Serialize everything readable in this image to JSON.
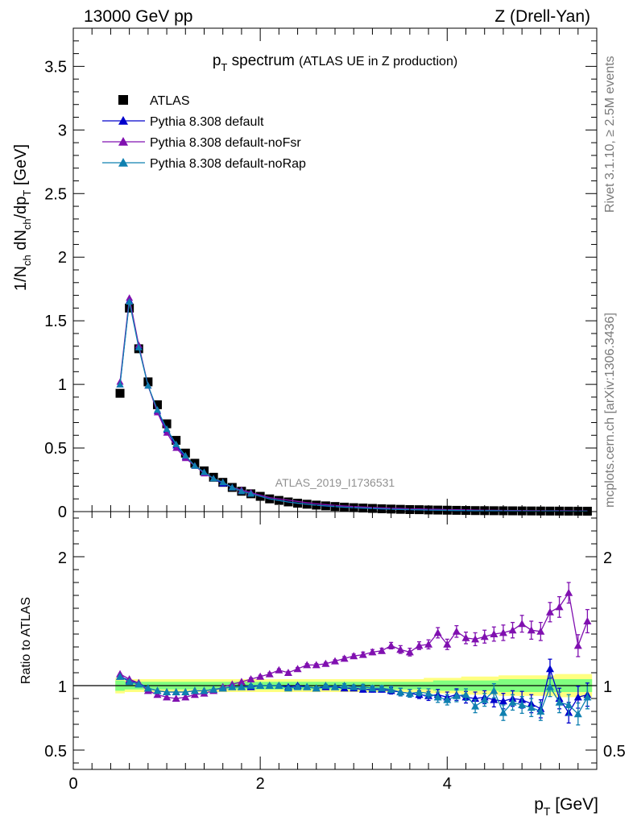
{
  "header": {
    "energy": "13000 GeV pp",
    "process": "Z (Drell-Yan)"
  },
  "side": {
    "rivet": "Rivet 3.1.10, ≥ 2.5M events",
    "mcplots": "mcplots.cern.ch [arXiv:1306.3436]"
  },
  "analysis_id": "ATLAS_2019_I1736531",
  "colors": {
    "data": "#000000",
    "default": "#0000cc",
    "noFsr": "#8010b0",
    "noRap": "#0f80b0",
    "band_outer": "#ffff80",
    "band_inner": "#80ff80"
  },
  "chart_data": [
    {
      "type": "line",
      "title": "p_T spectrum",
      "title_note": "(ATLAS UE in Z production)",
      "ylabel": "1/N_ch dN_ch/dp_T [GeV]",
      "xlabel": "p_T [GeV]",
      "xlim": [
        0,
        5.6
      ],
      "ylim": [
        0,
        3.8
      ],
      "y_ticks": [
        0,
        0.5,
        1,
        1.5,
        2,
        2.5,
        3,
        3.5
      ],
      "y_tick_labels": [
        "0",
        "0.5",
        "1",
        "1.5",
        "2",
        "2.5",
        "3",
        "3.5"
      ],
      "legend_position": "top-left",
      "x": [
        0.5,
        0.6,
        0.7,
        0.8,
        0.9,
        1.0,
        1.1,
        1.2,
        1.3,
        1.4,
        1.5,
        1.6,
        1.7,
        1.8,
        1.9,
        2.0,
        2.1,
        2.2,
        2.3,
        2.4,
        2.5,
        2.6,
        2.7,
        2.8,
        2.9,
        3.0,
        3.1,
        3.2,
        3.3,
        3.4,
        3.5,
        3.6,
        3.7,
        3.8,
        3.9,
        4.0,
        4.1,
        4.2,
        4.3,
        4.4,
        4.5,
        4.6,
        4.7,
        4.8,
        4.9,
        5.0,
        5.1,
        5.2,
        5.3,
        5.4,
        5.5
      ],
      "series": [
        {
          "name": "ATLAS",
          "marker": "square",
          "color": "#000000",
          "values": [
            0.93,
            1.6,
            1.28,
            1.02,
            0.84,
            0.69,
            0.56,
            0.46,
            0.38,
            0.32,
            0.27,
            0.23,
            0.19,
            0.16,
            0.14,
            0.12,
            0.1,
            0.088,
            0.076,
            0.066,
            0.058,
            0.051,
            0.045,
            0.04,
            0.035,
            0.031,
            0.028,
            0.025,
            0.022,
            0.02,
            0.018,
            0.016,
            0.015,
            0.013,
            0.012,
            0.011,
            0.01,
            0.009,
            0.008,
            0.0075,
            0.007,
            0.0065,
            0.006,
            0.0055,
            0.005,
            0.0046,
            0.0042,
            0.004,
            0.0037,
            0.0034,
            0.0032
          ]
        },
        {
          "name": "Pythia 8.308 default",
          "marker": "triangle",
          "color": "#0000cc",
          "values": [
            1.0,
            1.66,
            1.3,
            0.99,
            0.79,
            0.64,
            0.52,
            0.43,
            0.36,
            0.31,
            0.26,
            0.22,
            0.19,
            0.16,
            0.14,
            0.12,
            0.1,
            0.088,
            0.076,
            0.066,
            0.058,
            0.05,
            0.044,
            0.039,
            0.034,
            0.03,
            0.027,
            0.024,
            0.021,
            0.019,
            0.017,
            0.015,
            0.014,
            0.012,
            0.011,
            0.01,
            0.009,
            0.0082,
            0.0072,
            0.0068,
            0.0062,
            0.0057,
            0.0054,
            0.0049,
            0.0043,
            0.0052,
            0.0038,
            0.0036,
            0.0029,
            0.0031,
            0.003
          ]
        },
        {
          "name": "Pythia 8.308 default-noFsr",
          "marker": "triangle",
          "color": "#8010b0",
          "values": [
            1.02,
            1.68,
            1.31,
            0.99,
            0.78,
            0.62,
            0.5,
            0.42,
            0.36,
            0.3,
            0.26,
            0.23,
            0.19,
            0.17,
            0.15,
            0.13,
            0.11,
            0.1,
            0.09,
            0.08,
            0.07,
            0.062,
            0.055,
            0.049,
            0.044,
            0.04,
            0.036,
            0.033,
            0.03,
            0.027,
            0.025,
            0.022,
            0.021,
            0.019,
            0.018,
            0.016,
            0.015,
            0.014,
            0.012,
            0.011,
            0.01,
            0.0095,
            0.0085,
            0.0085,
            0.0072,
            0.0067,
            0.0064,
            0.0066,
            0.0064,
            0.0044,
            0.0048
          ]
        },
        {
          "name": "Pythia 8.308 default-noRap",
          "marker": "triangle",
          "color": "#0f80b0",
          "values": [
            1.0,
            1.65,
            1.29,
            0.99,
            0.8,
            0.65,
            0.53,
            0.44,
            0.36,
            0.31,
            0.26,
            0.23,
            0.19,
            0.16,
            0.14,
            0.12,
            0.1,
            0.088,
            0.075,
            0.066,
            0.058,
            0.05,
            0.045,
            0.04,
            0.035,
            0.031,
            0.028,
            0.025,
            0.022,
            0.019,
            0.017,
            0.016,
            0.014,
            0.012,
            0.011,
            0.0098,
            0.0092,
            0.0086,
            0.0069,
            0.0068,
            0.0068,
            0.0052,
            0.0053,
            0.0047,
            0.0041,
            0.0036,
            0.0042,
            0.0035,
            0.0032,
            0.0027,
            0.0029
          ]
        }
      ]
    },
    {
      "type": "line",
      "ylabel": "Ratio to ATLAS",
      "xlabel": "p_T [GeV]",
      "xlim": [
        0,
        5.6
      ],
      "ylim": [
        0.35,
        2.35
      ],
      "y_ticks": [
        0.5,
        1,
        2
      ],
      "y_tick_labels": [
        "0.5",
        "1",
        "2"
      ],
      "x_ticks": [
        0,
        2,
        4
      ],
      "x_tick_labels": [
        "0",
        "2",
        "4"
      ],
      "x": [
        0.5,
        0.6,
        0.7,
        0.8,
        0.9,
        1.0,
        1.1,
        1.2,
        1.3,
        1.4,
        1.5,
        1.6,
        1.7,
        1.8,
        1.9,
        2.0,
        2.1,
        2.2,
        2.3,
        2.4,
        2.5,
        2.6,
        2.7,
        2.8,
        2.9,
        3.0,
        3.1,
        3.2,
        3.3,
        3.4,
        3.5,
        3.6,
        3.7,
        3.8,
        3.9,
        4.0,
        4.1,
        4.2,
        4.3,
        4.4,
        4.5,
        4.6,
        4.7,
        4.8,
        4.9,
        5.0,
        5.1,
        5.2,
        5.3,
        5.4,
        5.5
      ],
      "band_inner_halfwidth": [
        0.04,
        0.03,
        0.03,
        0.03,
        0.03,
        0.03,
        0.03,
        0.03,
        0.03,
        0.03,
        0.03,
        0.03,
        0.03,
        0.03,
        0.03,
        0.03,
        0.03,
        0.03,
        0.03,
        0.03,
        0.03,
        0.03,
        0.03,
        0.03,
        0.03,
        0.03,
        0.03,
        0.03,
        0.03,
        0.03,
        0.03,
        0.03,
        0.03,
        0.03,
        0.04,
        0.04,
        0.04,
        0.04,
        0.04,
        0.04,
        0.04,
        0.05,
        0.05,
        0.05,
        0.05,
        0.05,
        0.05,
        0.05,
        0.05,
        0.05,
        0.05
      ],
      "band_outer_halfwidth": [
        0.06,
        0.05,
        0.05,
        0.05,
        0.05,
        0.05,
        0.05,
        0.05,
        0.05,
        0.05,
        0.05,
        0.05,
        0.05,
        0.05,
        0.05,
        0.05,
        0.05,
        0.05,
        0.05,
        0.05,
        0.05,
        0.05,
        0.05,
        0.05,
        0.05,
        0.05,
        0.05,
        0.05,
        0.05,
        0.05,
        0.05,
        0.05,
        0.05,
        0.06,
        0.06,
        0.06,
        0.06,
        0.07,
        0.07,
        0.07,
        0.07,
        0.08,
        0.08,
        0.08,
        0.08,
        0.08,
        0.08,
        0.09,
        0.09,
        0.09,
        0.09
      ],
      "series": [
        {
          "name": "Pythia 8.308 default",
          "marker": "triangle",
          "color": "#0000cc",
          "values": [
            1.07,
            1.04,
            1.02,
            0.98,
            0.96,
            0.95,
            0.95,
            0.95,
            0.96,
            0.96,
            0.97,
            0.98,
            0.99,
            0.99,
            0.99,
            1.0,
            1.0,
            1.0,
            0.99,
            1.0,
            0.99,
            0.98,
            0.99,
            0.99,
            0.98,
            0.98,
            0.97,
            0.97,
            0.97,
            0.96,
            0.95,
            0.94,
            0.93,
            0.92,
            0.93,
            0.91,
            0.93,
            0.91,
            0.9,
            0.91,
            0.89,
            0.88,
            0.9,
            0.89,
            0.86,
            0.82,
            1.13,
            0.9,
            0.79,
            0.91,
            0.93
          ],
          "errors": [
            0.005,
            0.005,
            0.005,
            0.005,
            0.005,
            0.005,
            0.005,
            0.005,
            0.005,
            0.005,
            0.005,
            0.005,
            0.005,
            0.005,
            0.01,
            0.01,
            0.01,
            0.01,
            0.01,
            0.01,
            0.01,
            0.01,
            0.01,
            0.01,
            0.015,
            0.015,
            0.02,
            0.02,
            0.02,
            0.025,
            0.03,
            0.03,
            0.03,
            0.035,
            0.04,
            0.04,
            0.045,
            0.045,
            0.05,
            0.05,
            0.055,
            0.06,
            0.06,
            0.065,
            0.07,
            0.07,
            0.075,
            0.08,
            0.08,
            0.085,
            0.09
          ]
        },
        {
          "name": "Pythia 8.308 default-noFsr",
          "marker": "triangle",
          "color": "#8010b0",
          "values": [
            1.09,
            1.05,
            1.02,
            0.96,
            0.93,
            0.91,
            0.9,
            0.91,
            0.93,
            0.94,
            0.96,
            0.99,
            1.01,
            1.03,
            1.05,
            1.07,
            1.09,
            1.12,
            1.1,
            1.13,
            1.16,
            1.16,
            1.17,
            1.19,
            1.21,
            1.23,
            1.24,
            1.26,
            1.27,
            1.31,
            1.28,
            1.26,
            1.31,
            1.32,
            1.41,
            1.32,
            1.42,
            1.37,
            1.36,
            1.38,
            1.4,
            1.41,
            1.43,
            1.48,
            1.43,
            1.42,
            1.57,
            1.61,
            1.72,
            1.31,
            1.5
          ],
          "errors": [
            0.005,
            0.005,
            0.005,
            0.005,
            0.005,
            0.005,
            0.005,
            0.005,
            0.005,
            0.005,
            0.005,
            0.005,
            0.005,
            0.005,
            0.01,
            0.01,
            0.01,
            0.01,
            0.01,
            0.01,
            0.01,
            0.01,
            0.01,
            0.01,
            0.015,
            0.015,
            0.02,
            0.02,
            0.02,
            0.025,
            0.03,
            0.03,
            0.03,
            0.035,
            0.04,
            0.04,
            0.045,
            0.045,
            0.05,
            0.05,
            0.055,
            0.06,
            0.06,
            0.065,
            0.07,
            0.07,
            0.075,
            0.08,
            0.08,
            0.085,
            0.09
          ]
        },
        {
          "name": "Pythia 8.308 default-noRap",
          "marker": "triangle",
          "color": "#0f80b0",
          "values": [
            1.07,
            1.03,
            1.01,
            0.98,
            0.96,
            0.95,
            0.95,
            0.95,
            0.96,
            0.96,
            0.97,
            0.98,
            0.99,
            0.99,
            1.0,
            1.0,
            1.0,
            1.0,
            0.98,
            0.99,
            0.99,
            0.98,
            1.0,
            0.99,
            1.0,
            0.99,
            0.99,
            0.98,
            0.98,
            0.97,
            0.95,
            0.94,
            0.95,
            0.94,
            0.91,
            0.89,
            0.92,
            0.93,
            0.84,
            0.89,
            0.96,
            0.79,
            0.87,
            0.85,
            0.83,
            0.8,
            0.99,
            0.87,
            0.85,
            0.78,
            0.91
          ],
          "errors": [
            0.005,
            0.005,
            0.005,
            0.005,
            0.005,
            0.005,
            0.005,
            0.005,
            0.005,
            0.005,
            0.005,
            0.005,
            0.005,
            0.005,
            0.01,
            0.01,
            0.01,
            0.01,
            0.01,
            0.01,
            0.01,
            0.01,
            0.01,
            0.01,
            0.015,
            0.015,
            0.02,
            0.02,
            0.02,
            0.025,
            0.03,
            0.03,
            0.03,
            0.035,
            0.04,
            0.04,
            0.045,
            0.045,
            0.05,
            0.05,
            0.055,
            0.06,
            0.06,
            0.065,
            0.07,
            0.07,
            0.075,
            0.08,
            0.08,
            0.085,
            0.09
          ]
        }
      ]
    }
  ]
}
